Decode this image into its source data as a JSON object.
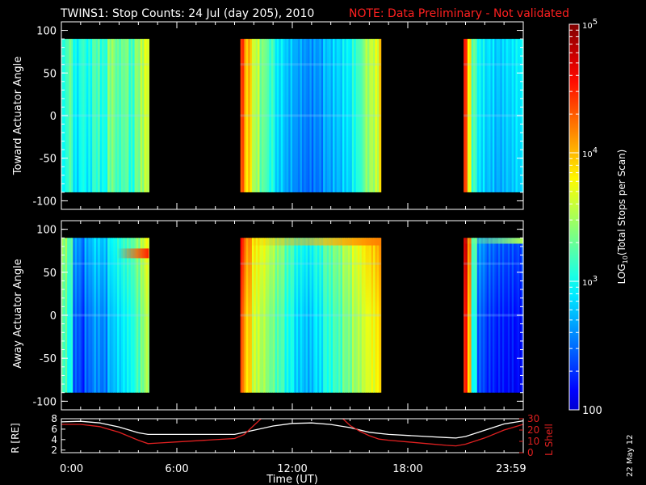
{
  "title": {
    "main": "TWINS1: Stop Counts: 24 Jul (day 205), 2010",
    "note": "NOTE: Data Preliminary - Not validated",
    "note_color": "#ff2020"
  },
  "date_stamp": "22 May 12",
  "chart_data": [
    {
      "type": "heatmap",
      "id": "toward",
      "ylabel": "Toward Actuator Angle",
      "ylim": [
        -110,
        110
      ],
      "yticks": [
        -100,
        -50,
        0,
        50,
        100
      ],
      "ydata_range": [
        -90,
        90
      ],
      "xlim_hours": [
        0,
        24
      ],
      "data_intervals_hours": [
        [
          0,
          4.55
        ],
        [
          9.3,
          16.6
        ],
        [
          20.9,
          24
        ]
      ],
      "profile": [
        [
          0.0,
          0.4
        ],
        [
          0.3,
          0.46
        ],
        [
          0.6,
          0.36
        ],
        [
          0.9,
          0.42
        ],
        [
          1.2,
          0.38
        ],
        [
          1.6,
          0.44
        ],
        [
          2.0,
          0.4
        ],
        [
          2.4,
          0.5
        ],
        [
          2.8,
          0.45
        ],
        [
          3.2,
          0.48
        ],
        [
          3.5,
          0.42
        ],
        [
          3.8,
          0.5
        ],
        [
          4.1,
          0.54
        ],
        [
          4.3,
          0.58
        ],
        [
          9.3,
          0.82
        ],
        [
          9.5,
          0.68
        ],
        [
          9.8,
          0.55
        ],
        [
          10.2,
          0.48
        ],
        [
          10.6,
          0.42
        ],
        [
          11.0,
          0.34
        ],
        [
          11.5,
          0.3
        ],
        [
          12.0,
          0.27
        ],
        [
          12.5,
          0.25
        ],
        [
          13.0,
          0.26
        ],
        [
          13.5,
          0.3
        ],
        [
          14.0,
          0.32
        ],
        [
          14.5,
          0.35
        ],
        [
          15.0,
          0.4
        ],
        [
          15.3,
          0.44
        ],
        [
          15.6,
          0.52
        ],
        [
          15.9,
          0.55
        ],
        [
          16.2,
          0.58
        ],
        [
          16.45,
          0.66
        ],
        [
          20.9,
          0.82
        ],
        [
          21.1,
          0.62
        ],
        [
          21.3,
          0.45
        ],
        [
          21.6,
          0.36
        ],
        [
          22.0,
          0.33
        ],
        [
          22.5,
          0.31
        ],
        [
          23.0,
          0.33
        ],
        [
          23.5,
          0.35
        ]
      ],
      "hotspots": []
    },
    {
      "type": "heatmap",
      "id": "away",
      "ylabel": "Away Actuator Angle",
      "ylim": [
        -110,
        110
      ],
      "yticks": [
        -100,
        -50,
        0,
        50,
        100
      ],
      "ydata_range": [
        -90,
        90
      ],
      "xlim_hours": [
        0,
        24
      ],
      "data_intervals_hours": [
        [
          0,
          4.55
        ],
        [
          9.3,
          16.6
        ],
        [
          20.9,
          24
        ]
      ],
      "profile": [
        [
          0.0,
          0.46
        ],
        [
          0.3,
          0.4
        ],
        [
          0.6,
          0.22
        ],
        [
          0.9,
          0.18
        ],
        [
          1.2,
          0.24
        ],
        [
          1.6,
          0.28
        ],
        [
          2.0,
          0.26
        ],
        [
          2.4,
          0.32
        ],
        [
          2.8,
          0.35
        ],
        [
          3.2,
          0.38
        ],
        [
          3.5,
          0.4
        ],
        [
          3.8,
          0.45
        ],
        [
          4.1,
          0.5
        ],
        [
          4.3,
          0.55
        ],
        [
          9.3,
          0.8
        ],
        [
          9.5,
          0.68
        ],
        [
          9.8,
          0.58
        ],
        [
          10.2,
          0.55
        ],
        [
          10.6,
          0.5
        ],
        [
          11.0,
          0.46
        ],
        [
          11.5,
          0.4
        ],
        [
          12.0,
          0.34
        ],
        [
          12.5,
          0.32
        ],
        [
          13.0,
          0.36
        ],
        [
          13.5,
          0.42
        ],
        [
          14.0,
          0.45
        ],
        [
          14.5,
          0.5
        ],
        [
          15.0,
          0.54
        ],
        [
          15.3,
          0.56
        ],
        [
          15.6,
          0.6
        ],
        [
          15.9,
          0.62
        ],
        [
          16.2,
          0.64
        ],
        [
          16.45,
          0.7
        ],
        [
          20.9,
          0.86
        ],
        [
          21.1,
          0.7
        ],
        [
          21.3,
          0.4
        ],
        [
          21.6,
          0.22
        ],
        [
          22.0,
          0.18
        ],
        [
          22.5,
          0.16
        ],
        [
          23.0,
          0.15
        ],
        [
          23.5,
          0.14
        ]
      ],
      "hotspots": [
        {
          "hour_start": 2.9,
          "hour_end": 4.55,
          "angle": 72,
          "intensity": 0.85
        },
        {
          "hour_start": 9.3,
          "hour_end": 16.6,
          "angle": 85,
          "intensity": 0.75
        },
        {
          "hour_start": 20.9,
          "hour_end": 24,
          "angle": 87,
          "intensity": 0.55
        }
      ]
    },
    {
      "type": "line",
      "id": "orbit",
      "xlabel": "Time (UT)",
      "xticks_hours": [
        0,
        6,
        12,
        18,
        23.983
      ],
      "xtick_labels": [
        "0:00",
        "6:00",
        "12:00",
        "18:00",
        "23:59"
      ],
      "left_axis": {
        "label": "R [RE]",
        "ylim": [
          1.5,
          8
        ],
        "yticks": [
          2,
          4,
          6,
          8
        ]
      },
      "right_axis": {
        "label": "L Shell",
        "ylim": [
          0,
          30
        ],
        "yticks": [
          0,
          10,
          20,
          30
        ]
      },
      "series": [
        {
          "name": "R [RE]",
          "color": "#ffffff",
          "axis": "left",
          "x": [
            0,
            1,
            2,
            3,
            4,
            4.5,
            5,
            6,
            7,
            8,
            9,
            10,
            11,
            12,
            13,
            14,
            15,
            16,
            17,
            18,
            19,
            20,
            20.5,
            21,
            22,
            23,
            24
          ],
          "y": [
            7.4,
            7.5,
            7.2,
            6.4,
            5.3,
            5.0,
            5.0,
            5.0,
            5.0,
            5.0,
            5.0,
            5.8,
            6.6,
            7.1,
            7.2,
            6.9,
            6.3,
            5.4,
            5.0,
            4.8,
            4.6,
            4.4,
            4.3,
            4.6,
            5.8,
            7.0,
            7.6
          ]
        },
        {
          "name": "L Shell",
          "color": "#e02020",
          "axis": "right",
          "x": [
            0,
            1,
            2,
            3,
            4,
            4.5,
            5,
            6,
            7,
            8,
            9,
            9.5,
            10,
            10.5,
            11,
            14,
            14.5,
            15,
            15.5,
            16,
            16.5,
            17,
            18,
            19,
            20,
            20.5,
            21,
            22,
            23,
            24
          ],
          "y": [
            25,
            25,
            23,
            18,
            11,
            8,
            8.5,
            9.5,
            10.5,
            11.5,
            12.5,
            16,
            24,
            32,
            40,
            40,
            32,
            24,
            19,
            15,
            12,
            11,
            9.5,
            8,
            6.5,
            6,
            7.5,
            13,
            20,
            25
          ]
        }
      ]
    }
  ],
  "colorbar": {
    "label_prefix": "LOG",
    "label_sub": "10",
    "label_suffix": "(Total Stops per Scan)",
    "range": [
      100,
      100000
    ],
    "tick_labels": [
      {
        "value": 100000,
        "base": "10",
        "exp": "5"
      },
      {
        "value": 10000,
        "base": "10",
        "exp": "4"
      },
      {
        "value": 1000,
        "base": "10",
        "exp": "3"
      },
      {
        "value": 100,
        "base": "100",
        "exp": ""
      }
    ]
  }
}
